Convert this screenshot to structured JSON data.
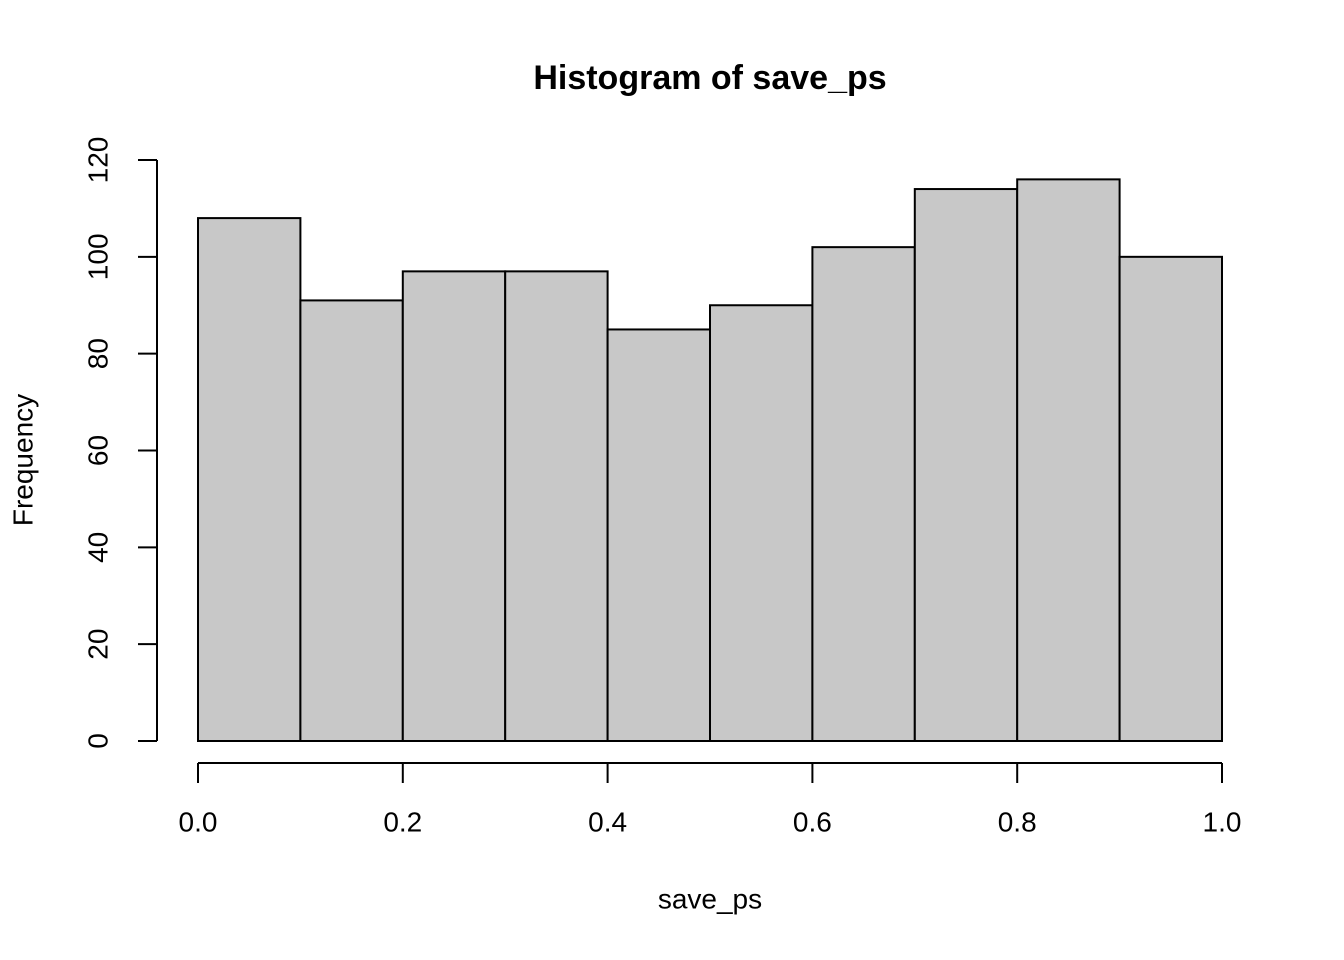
{
  "chart_data": {
    "type": "histogram",
    "title": "Histogram of save_ps",
    "x_label": "save_ps",
    "y_label": "Frequency",
    "bins": [
      0,
      0.1,
      0.2,
      0.3,
      0.4,
      0.5,
      0.6,
      0.7,
      0.8,
      0.9,
      1
    ],
    "values": [
      108,
      91,
      97,
      97,
      85,
      90,
      102,
      114,
      116,
      100
    ],
    "color": "#c8c8c8",
    "xlim": [
      0,
      1
    ],
    "ylim": [
      0,
      120
    ],
    "xticks": [
      {
        "value": 0,
        "label": "0.0"
      },
      0.2,
      0.4,
      0.6,
      0.8,
      {
        "value": 1,
        "label": "1.0"
      }
    ],
    "yticks": [
      0,
      20,
      40,
      60,
      80,
      100,
      120
    ]
  }
}
